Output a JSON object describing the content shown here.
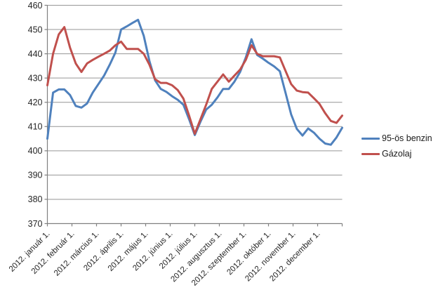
{
  "chart_data": {
    "type": "line",
    "title": "",
    "xlabel": "",
    "ylabel": "",
    "ylim": [
      370,
      460
    ],
    "y_tick_step": 10,
    "y_tick_labels": [
      370,
      380,
      390,
      400,
      410,
      420,
      430,
      440,
      450,
      460
    ],
    "x_tick_labels": [
      "2012. január 1.",
      "2012. február 1.",
      "2012. március 1.",
      "2012. április 1.",
      "2012. május 1.",
      "2012. június 1.",
      "2012. július 1.",
      "2012. augusztus 1.",
      "2012. szeptember 1.",
      "2012. október 1.",
      "2012. november 1.",
      "2012. december 1."
    ],
    "x_cadence": "weekly",
    "grid": true,
    "legend_position": "right",
    "colors": {
      "grid": "#969696",
      "axis": "#808080",
      "benzin": "#4F81BD",
      "gazolaj": "#C0504D"
    },
    "series": [
      {
        "name": "95-ös benzin",
        "color": "#4F81BD",
        "values": [
          405,
          424,
          425.3,
          425.3,
          423,
          418.5,
          417.8,
          419.5,
          424,
          427.5,
          431,
          435.5,
          440.5,
          450,
          451.3,
          452.7,
          454,
          447.4,
          437,
          429,
          425.5,
          424.3,
          422.5,
          421,
          419,
          413,
          406.5,
          412,
          417,
          419,
          422,
          425.5,
          425.5,
          428.5,
          432.5,
          438.5,
          446,
          439.5,
          438,
          436.3,
          434.8,
          432.8,
          424,
          415,
          409,
          406.3,
          409.2,
          407.5,
          405,
          403,
          402.5,
          405.5,
          409.5
        ]
      },
      {
        "name": "Gázolaj",
        "color": "#C0504D",
        "values": [
          427,
          440,
          448,
          451,
          442.5,
          436,
          432.5,
          436,
          437.5,
          438.8,
          440,
          441.3,
          443.5,
          445,
          442,
          442,
          442,
          440,
          435.5,
          429.5,
          428,
          428,
          427,
          425,
          421.5,
          414.5,
          407,
          413,
          419,
          425.5,
          428.5,
          431.5,
          428.5,
          431,
          433.5,
          437.5,
          443.5,
          440,
          439,
          439,
          439,
          438.5,
          433,
          427.5,
          424.8,
          424.2,
          424,
          421.7,
          419.3,
          415.5,
          412.3,
          411.5,
          414.5
        ]
      }
    ]
  },
  "legend": {
    "items": [
      {
        "label": "95-ös benzin"
      },
      {
        "label": "Gázolaj"
      }
    ]
  }
}
